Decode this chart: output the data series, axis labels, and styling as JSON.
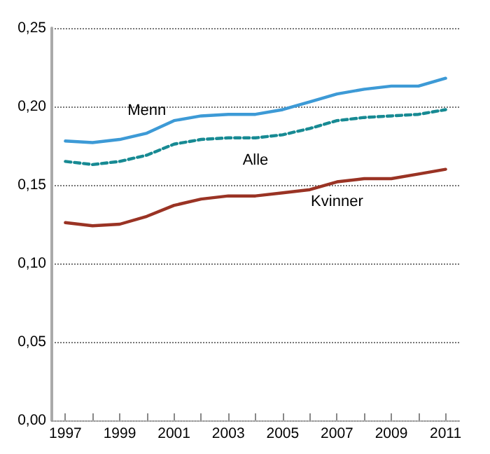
{
  "chart_data": {
    "type": "line",
    "x": [
      1997,
      1998,
      1999,
      2000,
      2001,
      2002,
      2003,
      2004,
      2005,
      2006,
      2007,
      2008,
      2009,
      2010,
      2011
    ],
    "series": [
      {
        "name": "Menn",
        "color": "#3d9ad6",
        "line_style": "solid",
        "values": [
          0.178,
          0.177,
          0.179,
          0.183,
          0.191,
          0.194,
          0.195,
          0.195,
          0.198,
          0.203,
          0.208,
          0.211,
          0.213,
          0.213,
          0.218
        ]
      },
      {
        "name": "Alle",
        "color": "#178a93",
        "line_style": "dashed",
        "values": [
          0.165,
          0.163,
          0.165,
          0.169,
          0.176,
          0.179,
          0.18,
          0.18,
          0.182,
          0.186,
          0.191,
          0.193,
          0.194,
          0.195,
          0.198
        ]
      },
      {
        "name": "Kvinner",
        "color": "#9a3324",
        "line_style": "solid",
        "values": [
          0.126,
          0.124,
          0.125,
          0.13,
          0.137,
          0.141,
          0.143,
          0.143,
          0.145,
          0.147,
          0.152,
          0.154,
          0.154,
          0.157,
          0.16
        ]
      }
    ],
    "xlim": [
      1996.5,
      2011.5
    ],
    "xticks": [
      1997,
      {
        "value": 1998,
        "label": null
      },
      1999,
      {
        "value": 2000,
        "label": null
      },
      2001,
      {
        "value": 2002,
        "label": null
      },
      2003,
      {
        "value": 2004,
        "label": null
      },
      2005,
      {
        "value": 2006,
        "label": null
      },
      2007,
      {
        "value": 2008,
        "label": null
      },
      2009,
      {
        "value": 2010,
        "label": null
      },
      2011
    ],
    "ylim": [
      0,
      0.25
    ],
    "yticks": [
      {
        "value": 0,
        "label": "0,00"
      },
      {
        "value": 0.05,
        "label": "0,05"
      },
      {
        "value": 0.1,
        "label": "0,10"
      },
      {
        "value": 0.15,
        "label": "0,15"
      },
      {
        "value": 0.2,
        "label": "0,20"
      },
      {
        "value": 0.25,
        "label": "0,25"
      }
    ],
    "grid": "y",
    "marker": "none",
    "legend": false
  }
}
